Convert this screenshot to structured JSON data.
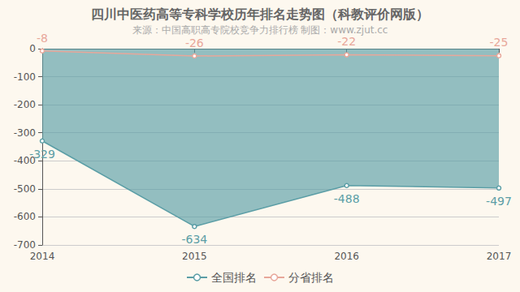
{
  "chart_data": {
    "type": "line",
    "title": "四川中医药高等专科学校历年排名走势图（科教评价网版）",
    "subtitle": "来源：中国高职高专院校竞争力排行榜 制图：www.zjut.cc",
    "categories": [
      "2014",
      "2015",
      "2016",
      "2017"
    ],
    "series": [
      {
        "name": "全国排名",
        "type": "area",
        "color": "#5b9ea6",
        "values": [
          -329,
          -634,
          -488,
          -497
        ]
      },
      {
        "name": "分省排名",
        "type": "line",
        "color": "#e8a79a",
        "values": [
          -8,
          -26,
          -22,
          -25
        ]
      }
    ],
    "ylim": [
      -700,
      0
    ],
    "yticks": [
      -700,
      -600,
      -500,
      -400,
      -300,
      -200,
      -100,
      0
    ],
    "grid": true,
    "legend": "bottom",
    "data_labels": true,
    "marker": "circle"
  }
}
